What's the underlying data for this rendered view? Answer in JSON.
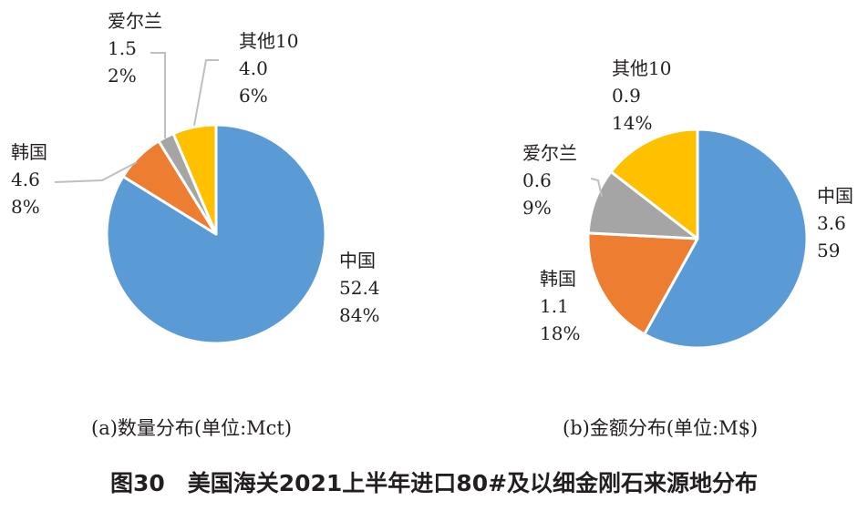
{
  "figure_title": "图30　美国海关2021上半年进口80#及以细金刚石来源地分布",
  "chart_data": [
    {
      "type": "pie",
      "caption": "(a)数量分布(单位:Mct)",
      "unit": "Mct",
      "slices": [
        {
          "name": "中国",
          "value": 52.4,
          "value_label": "52.4",
          "percent_label": "84%",
          "color": "#5b9bd5"
        },
        {
          "name": "韩国",
          "value": 4.6,
          "value_label": "4.6",
          "percent_label": "8%",
          "color": "#ed7d31"
        },
        {
          "name": "爱尔兰",
          "value": 1.5,
          "value_label": "1.5",
          "percent_label": "2%",
          "color": "#a5a5a5"
        },
        {
          "name": "其他10",
          "value": 4.0,
          "value_label": "4.0",
          "percent_label": "6%",
          "color": "#ffc000"
        }
      ]
    },
    {
      "type": "pie",
      "caption": "(b)金额分布(单位:M$)",
      "unit": "M$",
      "slices": [
        {
          "name": "中国",
          "value": 3.6,
          "value_label": "3.6",
          "percent_label": "59",
          "color": "#5b9bd5"
        },
        {
          "name": "韩国",
          "value": 1.1,
          "value_label": "1.1",
          "percent_label": "18%",
          "color": "#ed7d31"
        },
        {
          "name": "爱尔兰",
          "value": 0.6,
          "value_label": "0.6",
          "percent_label": "9%",
          "color": "#a5a5a5"
        },
        {
          "name": "其他10",
          "value": 0.9,
          "value_label": "0.9",
          "percent_label": "14%",
          "color": "#ffc000"
        }
      ]
    }
  ]
}
